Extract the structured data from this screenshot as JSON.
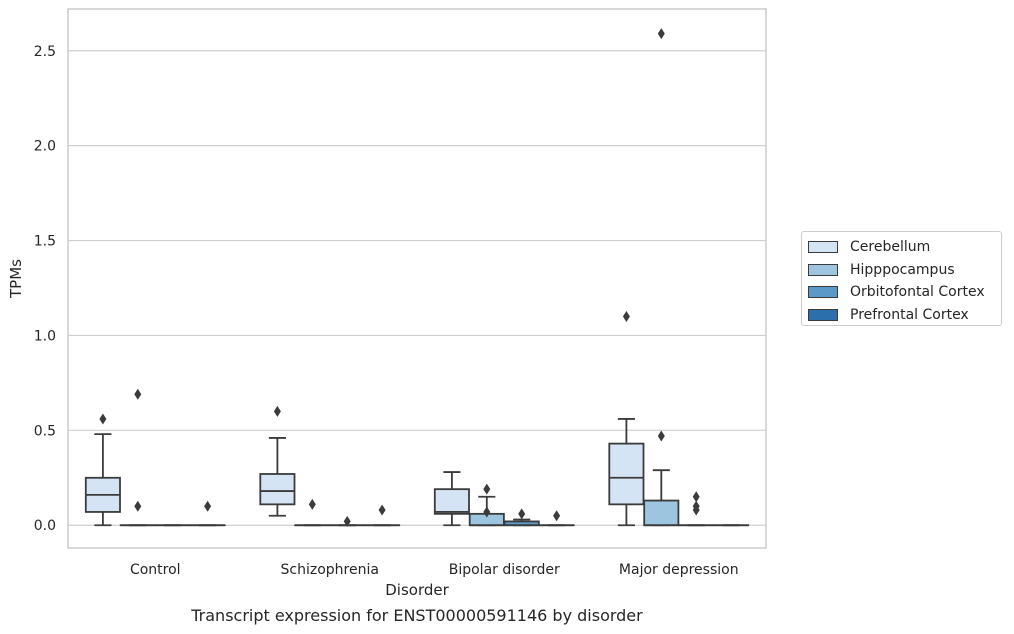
{
  "chart_data": {
    "type": "box",
    "caption": "Transcript expression for ENST00000591146 by disorder",
    "xlabel": "Disorder",
    "ylabel": "TPMs",
    "ylim": [
      -0.12,
      2.72
    ],
    "yticks": [
      0.0,
      0.5,
      1.0,
      1.5,
      2.0,
      2.5
    ],
    "ytick_labels": [
      "0.0",
      "0.5",
      "1.0",
      "1.5",
      "2.0",
      "2.5"
    ],
    "grid": "horizontal",
    "legend_position": "right",
    "categories": [
      "Control",
      "Schizophrenia",
      "Bipolar disorder",
      "Major depression"
    ],
    "series": [
      {
        "name": "Cerebellum",
        "color": "#d4e4f4",
        "boxes": [
          {
            "whislo": 0.0,
            "q1": 0.07,
            "median": 0.16,
            "q3": 0.25,
            "whishi": 0.48,
            "fliers": [
              0.56
            ]
          },
          {
            "whislo": 0.05,
            "q1": 0.11,
            "median": 0.18,
            "q3": 0.27,
            "whishi": 0.46,
            "fliers": [
              0.6
            ]
          },
          {
            "whislo": 0.0,
            "q1": 0.06,
            "median": 0.07,
            "q3": 0.19,
            "whishi": 0.28,
            "fliers": []
          },
          {
            "whislo": 0.0,
            "q1": 0.11,
            "median": 0.25,
            "q3": 0.43,
            "whishi": 0.56,
            "fliers": [
              1.1
            ]
          }
        ]
      },
      {
        "name": "Hipppocampus",
        "color": "#9ec5df",
        "boxes": [
          {
            "whislo": 0.0,
            "q1": 0.0,
            "median": 0.0,
            "q3": 0.0,
            "whishi": 0.0,
            "fliers": [
              0.1,
              0.69
            ]
          },
          {
            "whislo": 0.0,
            "q1": 0.0,
            "median": 0.0,
            "q3": 0.0,
            "whishi": 0.0,
            "fliers": [
              0.11
            ]
          },
          {
            "whislo": 0.0,
            "q1": 0.0,
            "median": 0.0,
            "q3": 0.06,
            "whishi": 0.15,
            "fliers": [
              0.07,
              0.19
            ]
          },
          {
            "whislo": 0.0,
            "q1": 0.0,
            "median": 0.0,
            "q3": 0.13,
            "whishi": 0.29,
            "fliers": [
              0.47,
              2.59
            ]
          }
        ]
      },
      {
        "name": "Orbitofontal Cortex",
        "color": "#5b9ac8",
        "boxes": [
          {
            "whislo": 0.0,
            "q1": 0.0,
            "median": 0.0,
            "q3": 0.0,
            "whishi": 0.0,
            "fliers": []
          },
          {
            "whislo": 0.0,
            "q1": 0.0,
            "median": 0.0,
            "q3": 0.0,
            "whishi": 0.0,
            "fliers": [
              0.02
            ]
          },
          {
            "whislo": 0.0,
            "q1": 0.0,
            "median": 0.0,
            "q3": 0.02,
            "whishi": 0.03,
            "fliers": [
              0.06
            ]
          },
          {
            "whislo": 0.0,
            "q1": 0.0,
            "median": 0.0,
            "q3": 0.0,
            "whishi": 0.0,
            "fliers": [
              0.08,
              0.1,
              0.15
            ]
          }
        ]
      },
      {
        "name": "Prefrontal Cortex",
        "color": "#2b6fad",
        "boxes": [
          {
            "whislo": 0.0,
            "q1": 0.0,
            "median": 0.0,
            "q3": 0.0,
            "whishi": 0.0,
            "fliers": [
              0.1
            ]
          },
          {
            "whislo": 0.0,
            "q1": 0.0,
            "median": 0.0,
            "q3": 0.0,
            "whishi": 0.0,
            "fliers": [
              0.08
            ]
          },
          {
            "whislo": 0.0,
            "q1": 0.0,
            "median": 0.0,
            "q3": 0.0,
            "whishi": 0.0,
            "fliers": [
              0.05
            ]
          },
          {
            "whislo": 0.0,
            "q1": 0.0,
            "median": 0.0,
            "q3": 0.0,
            "whishi": 0.0,
            "fliers": []
          }
        ]
      }
    ]
  }
}
